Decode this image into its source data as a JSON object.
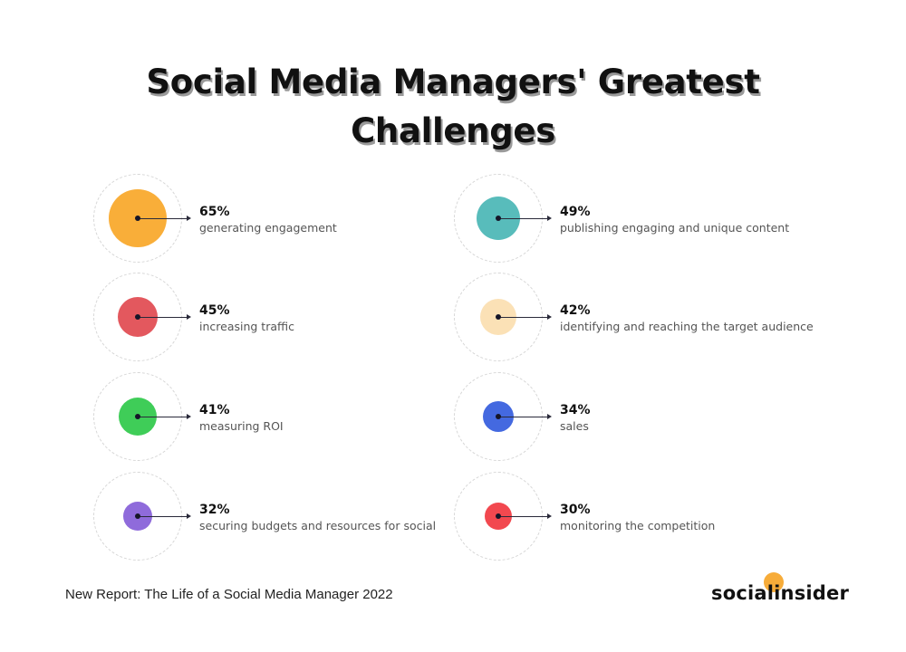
{
  "title": {
    "line1": "Social Media Managers' Greatest",
    "line2": "Challenges"
  },
  "chart_data": {
    "type": "bubble-list",
    "title": "Social Media Managers' Greatest Challenges",
    "unit": "%",
    "layout": "two columns, four rows; bubble area scaled to value",
    "items": [
      {
        "value": 65,
        "pct_label": "65%",
        "label": "generating engagement",
        "color": "#f9ae39",
        "column": 1,
        "row": 1
      },
      {
        "value": 49,
        "pct_label": "49%",
        "label": "publishing engaging and unique content",
        "color": "#58bcbb",
        "column": 2,
        "row": 1
      },
      {
        "value": 45,
        "pct_label": "45%",
        "label": "increasing traffic",
        "color": "#e3585e",
        "column": 1,
        "row": 2
      },
      {
        "value": 42,
        "pct_label": "42%",
        "label": "identifying and reaching the target audience",
        "color": "#fbe1b6",
        "column": 2,
        "row": 2
      },
      {
        "value": 41,
        "pct_label": "41%",
        "label": "measuring ROI",
        "color": "#3fcd58",
        "column": 1,
        "row": 3
      },
      {
        "value": 34,
        "pct_label": "34%",
        "label": "sales",
        "color": "#4469e0",
        "column": 2,
        "row": 3
      },
      {
        "value": 32,
        "pct_label": "32%",
        "label": "securing budgets and resources for social",
        "color": "#8f6bdb",
        "column": 1,
        "row": 4
      },
      {
        "value": 30,
        "pct_label": "30%",
        "label": "monitoring the competition",
        "color": "#f2484f",
        "column": 2,
        "row": 4
      }
    ]
  },
  "items": [
    {
      "pct": "65%",
      "label": "generating engagement",
      "color": "#f9ae39",
      "radius": 32
    },
    {
      "pct": "49%",
      "label": "publishing engaging and unique content",
      "color": "#58bcbb",
      "radius": 24
    },
    {
      "pct": "45%",
      "label": "increasing traffic",
      "color": "#e3585e",
      "radius": 22
    },
    {
      "pct": "42%",
      "label": "identifying and reaching the target audience",
      "color": "#fbe1b6",
      "radius": 20
    },
    {
      "pct": "41%",
      "label": "measuring ROI",
      "color": "#3fcd58",
      "radius": 21
    },
    {
      "pct": "34%",
      "label": "sales",
      "color": "#4469e0",
      "radius": 17
    },
    {
      "pct": "32%",
      "label": "securing budgets and resources for social",
      "color": "#8f6bdb",
      "radius": 16
    },
    {
      "pct": "30%",
      "label": "monitoring the competition",
      "color": "#f2484f",
      "radius": 15
    }
  ],
  "footer": {
    "note": "New Report: The Life of a Social Media Manager 2022",
    "logo_text": "socialinsider",
    "logo_accent": "#f7ac39"
  }
}
